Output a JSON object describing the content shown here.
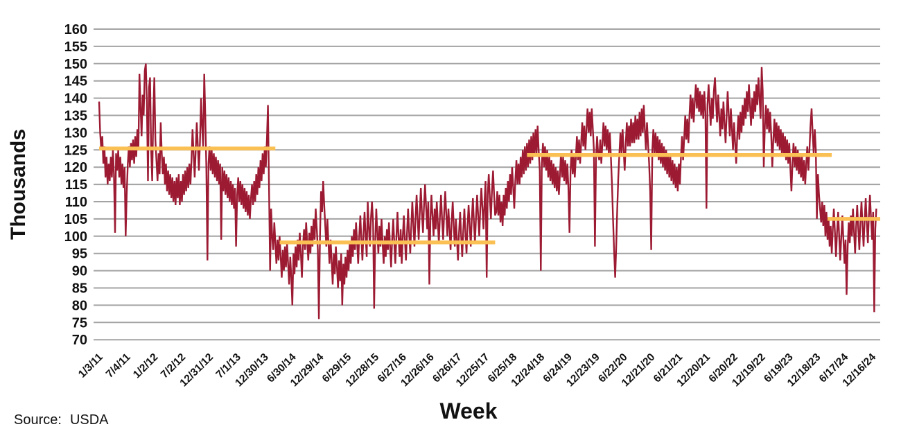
{
  "source_note": {
    "label": "Source:",
    "value": "USDA"
  },
  "chart_data": {
    "type": "line",
    "title": "",
    "xlabel": "Week",
    "ylabel": "Thousands",
    "ylim": [
      70,
      160
    ],
    "ytick_step": 5,
    "grid": "horizontal",
    "gridline_color": "#A3A3A3",
    "text_color": "#111111",
    "x_tick_interval_weeks": 26,
    "x_tick_labels": [
      "1/3/11",
      "7/4/11",
      "1/2/12",
      "7/2/12",
      "12/31/12",
      "7/1/13",
      "12/30/13",
      "6/30/14",
      "12/29/14",
      "6/29/15",
      "12/28/15",
      "6/27/16",
      "12/26/16",
      "6/26/17",
      "12/25/17",
      "6/25/18",
      "12/24/18",
      "6/24/19",
      "12/23/19",
      "6/22/20",
      "12/21/20",
      "6/21/21",
      "12/20/21",
      "6/20/22",
      "12/19/22",
      "6/19/23",
      "12/18/23",
      "6/17/24",
      "12/16/24"
    ],
    "series": [
      {
        "name": "weekly-value-thousands",
        "color": "#9C1B33",
        "start_week": 0,
        "week_step": 1,
        "values": [
          139,
          130,
          125,
          129,
          121,
          126,
          117,
          123,
          115,
          121,
          116,
          123,
          117,
          125,
          118,
          101,
          124,
          119,
          125,
          117,
          123,
          115,
          121,
          114,
          120,
          100,
          112,
          121,
          126,
          120,
          127,
          122,
          128,
          121,
          129,
          123,
          131,
          125,
          147,
          138,
          129,
          141,
          135,
          148,
          150,
          139,
          116,
          143,
          146,
          125,
          116,
          135,
          146,
          128,
          122,
          116,
          124,
          118,
          133,
          124,
          118,
          123,
          115,
          121,
          113,
          119,
          112,
          118,
          111,
          117,
          110,
          116,
          109,
          117,
          111,
          118,
          109,
          116,
          110,
          118,
          112,
          119,
          113,
          120,
          114,
          121,
          115,
          122,
          131,
          124,
          117,
          125,
          133,
          126,
          119,
          127,
          140,
          132,
          126,
          147,
          135,
          120,
          93,
          121,
          126,
          119,
          125,
          118,
          124,
          117,
          123,
          116,
          122,
          115,
          121,
          99,
          120,
          113,
          119,
          112,
          118,
          111,
          117,
          110,
          116,
          109,
          115,
          108,
          114,
          97,
          112,
          117,
          110,
          116,
          109,
          115,
          108,
          114,
          107,
          113,
          106,
          112,
          105,
          111,
          115,
          109,
          116,
          110,
          118,
          112,
          120,
          114,
          122,
          116,
          124,
          118,
          126,
          120,
          128,
          138,
          115,
          90,
          108,
          100,
          96,
          104,
          98,
          92,
          99,
          93,
          100,
          94,
          88,
          96,
          90,
          97,
          91,
          98,
          92,
          86,
          94,
          88,
          80,
          95,
          89,
          97,
          91,
          99,
          93,
          101,
          95,
          88,
          97,
          102,
          96,
          104,
          98,
          93,
          101,
          95,
          103,
          97,
          105,
          99,
          108,
          102,
          96,
          76,
          100,
          113,
          107,
          116,
          109,
          103,
          97,
          105,
          98,
          92,
          99,
          93,
          86,
          95,
          89,
          97,
          91,
          85,
          93,
          87,
          95,
          80,
          92,
          86,
          94,
          88,
          96,
          90,
          98,
          92,
          100,
          94,
          102,
          96,
          104,
          98,
          92,
          100,
          106,
          99,
          93,
          101,
          107,
          100,
          94,
          110,
          103,
          97,
          105,
          110,
          104,
          79,
          98,
          108,
          101,
          95,
          103,
          97,
          105,
          98,
          92,
          100,
          94,
          102,
          96,
          104,
          97,
          91,
          99,
          105,
          98,
          92,
          100,
          107,
          100,
          94,
          102,
          92,
          100,
          106,
          99,
          93,
          101,
          108,
          101,
          95,
          103,
          110,
          103,
          97,
          105,
          112,
          105,
          99,
          107,
          114,
          107,
          101,
          109,
          115,
          108,
          102,
          110,
          86,
          105,
          112,
          106,
          100,
          108,
          102,
          110,
          104,
          98,
          106,
          112,
          105,
          99,
          107,
          113,
          106,
          100,
          108,
          102,
          96,
          104,
          110,
          103,
          97,
          105,
          99,
          93,
          101,
          107,
          100,
          94,
          102,
          108,
          101,
          95,
          103,
          109,
          103,
          97,
          105,
          111,
          104,
          98,
          106,
          112,
          106,
          100,
          108,
          114,
          108,
          102,
          110,
          116,
          88,
          112,
          118,
          111,
          105,
          113,
          119,
          112,
          106,
          107,
          113,
          106,
          112,
          104,
          110,
          103,
          112,
          106,
          114,
          108,
          116,
          110,
          118,
          112,
          120,
          114,
          108,
          116,
          122,
          115,
          121,
          115,
          123,
          117,
          125,
          118,
          126,
          119,
          127,
          120,
          128,
          121,
          129,
          122,
          130,
          123,
          131,
          124,
          132,
          125,
          119,
          90,
          121,
          127,
          120,
          126,
          119,
          125,
          117,
          123,
          116,
          122,
          115,
          121,
          114,
          120,
          113,
          119,
          112,
          118,
          124,
          117,
          123,
          116,
          122,
          115,
          121,
          114,
          101,
          119,
          125,
          118,
          124,
          117,
          123,
          129,
          122,
          128,
          121,
          127,
          133,
          126,
          132,
          125,
          131,
          137,
          130,
          136,
          129,
          137,
          131,
          125,
          97,
          123,
          129,
          124,
          122,
          128,
          121,
          127,
          133,
          126,
          132,
          125,
          131,
          124,
          130,
          123,
          115,
          105,
          96,
          88,
          97,
          108,
          117,
          124,
          130,
          124,
          131,
          125,
          119,
          127,
          133,
          126,
          132,
          126,
          134,
          127,
          133,
          127,
          135,
          128,
          134,
          128,
          136,
          129,
          137,
          130,
          138,
          131,
          125,
          133,
          127,
          121,
          113,
          96,
          125,
          131,
          124,
          130,
          123,
          129,
          122,
          128,
          121,
          127,
          120,
          126,
          119,
          125,
          118,
          124,
          117,
          123,
          116,
          122,
          115,
          121,
          114,
          120,
          113,
          121,
          115,
          123,
          129,
          122,
          128,
          135,
          128,
          134,
          127,
          135,
          141,
          134,
          140,
          133,
          139,
          144,
          137,
          143,
          136,
          142,
          135,
          141,
          134,
          142,
          136,
          108,
          138,
          144,
          138,
          132,
          140,
          134,
          142,
          146,
          139,
          133,
          141,
          135,
          129,
          137,
          131,
          139,
          133,
          127,
          135,
          142,
          135,
          129,
          137,
          131,
          125,
          133,
          127,
          121,
          129,
          135,
          128,
          136,
          130,
          138,
          132,
          140,
          134,
          142,
          136,
          144,
          138,
          132,
          140,
          134,
          142,
          136,
          144,
          138,
          146,
          140,
          134,
          149,
          142,
          120,
          132,
          138,
          131,
          137,
          130,
          136,
          129,
          120,
          128,
          134,
          127,
          133,
          126,
          132,
          125,
          131,
          124,
          130,
          123,
          129,
          122,
          128,
          121,
          127,
          120,
          113,
          121,
          127,
          120,
          126,
          119,
          125,
          118,
          124,
          117,
          123,
          116,
          122,
          115,
          121,
          126,
          119,
          125,
          132,
          137,
          130,
          124,
          131,
          125,
          105,
          118,
          112,
          108,
          104,
          110,
          103,
          109,
          100,
          107,
          99,
          105,
          97,
          103,
          95,
          102,
          108,
          101,
          94,
          101,
          107,
          100,
          93,
          100,
          106,
          99,
          92,
          99,
          83,
          97,
          104,
          98,
          106,
          100,
          108,
          101,
          95,
          103,
          109,
          102,
          96,
          104,
          110,
          103,
          97,
          105,
          111,
          104,
          98,
          106,
          112,
          105,
          99,
          107,
          78,
          102,
          108
        ]
      }
    ],
    "average_lines": [
      {
        "value": 125.4,
        "start_week": 0,
        "end_week": 166,
        "color": "#FBC053"
      },
      {
        "value": 98.2,
        "start_week": 170,
        "end_week": 373,
        "color": "#FBC053"
      },
      {
        "value": 123.5,
        "start_week": 403,
        "end_week": 690,
        "color": "#FBC053"
      },
      {
        "value": 105.0,
        "start_week": 686,
        "end_week": 739,
        "color": "#FBC053"
      }
    ]
  }
}
